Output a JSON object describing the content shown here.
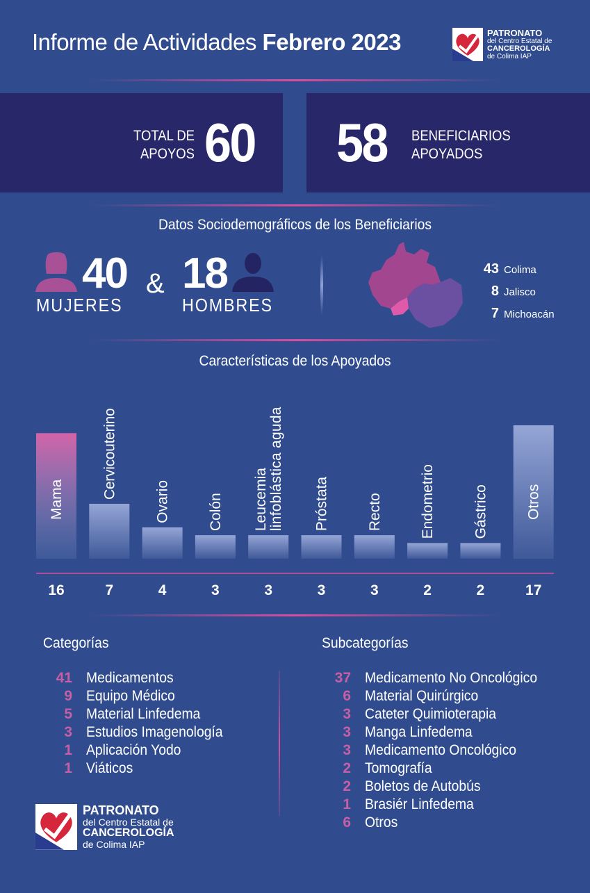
{
  "header": {
    "title_light": "Informe de Actividades",
    "title_bold": "Febrero 2023",
    "logo_line1": "PATRONATO",
    "logo_line2": "del Centro Estatal de",
    "logo_line3": "CANCEROLOGÍA",
    "logo_line4": "de Colima IAP"
  },
  "totals": {
    "apoyos_label_1": "TOTAL DE",
    "apoyos_label_2": "APOYOS",
    "apoyos_value": "60",
    "beneficiarios_value": "58",
    "beneficiarios_label_1": "BENEFICIARIOS",
    "beneficiarios_label_2": "APOYADOS"
  },
  "demographics": {
    "title": "Datos Sociodemográficos de los Beneficiarios",
    "women_value": "40",
    "women_label": "MUJERES",
    "amp": "&",
    "men_value": "18",
    "men_label": "HOMBRES",
    "states": [
      {
        "count": "43",
        "name": "Colima"
      },
      {
        "count": "8",
        "name": "Jalisco"
      },
      {
        "count": "7",
        "name": "Michoacán"
      }
    ]
  },
  "chart_data": {
    "type": "bar",
    "title": "Características de los Apoyados",
    "categories": [
      "Mama",
      "Cervicouterino",
      "Ovario",
      "Colón",
      "Leucemia linfoblástica aguda",
      "Próstata",
      "Recto",
      "Endometrio",
      "Gástrico",
      "Otros"
    ],
    "label_lines": [
      [
        "Mama"
      ],
      [
        "Cervicouterino"
      ],
      [
        "Ovario"
      ],
      [
        "Colón"
      ],
      [
        "Leucemia",
        "linfoblástica aguda"
      ],
      [
        "Próstata"
      ],
      [
        "Recto"
      ],
      [
        "Endometrio"
      ],
      [
        "Gástrico"
      ],
      [
        "Otros"
      ]
    ],
    "values": [
      16,
      7,
      4,
      3,
      3,
      3,
      3,
      2,
      2,
      17
    ],
    "highlight_index": 0,
    "colors": {
      "bar": "#8e9fd0",
      "highlight": "#d463a8"
    }
  },
  "categories": {
    "title": "Categorías",
    "items": [
      {
        "n": "41",
        "label": "Medicamentos"
      },
      {
        "n": "9",
        "label": "Equipo Médico"
      },
      {
        "n": "5",
        "label": "Material Linfedema"
      },
      {
        "n": "3",
        "label": "Estudios Imagenología"
      },
      {
        "n": "1",
        "label": "Aplicación Yodo"
      },
      {
        "n": "1",
        "label": "Viáticos"
      }
    ]
  },
  "subcategories": {
    "title": "Subcategorías",
    "items": [
      {
        "n": "37",
        "label": "Medicamento No Oncológico"
      },
      {
        "n": "6",
        "label": "Material Quirúrgico"
      },
      {
        "n": "3",
        "label": "Cateter Quimioterapia"
      },
      {
        "n": "3",
        "label": "Manga Linfedema"
      },
      {
        "n": "3",
        "label": "Medicamento Oncológico"
      },
      {
        "n": "2",
        "label": "Tomografía"
      },
      {
        "n": "2",
        "label": "Boletos de Autobús"
      },
      {
        "n": "1",
        "label": "Brasiér Linfedema"
      },
      {
        "n": "6",
        "label": "Otros"
      }
    ]
  },
  "colors": {
    "background": "#304c8e",
    "panel": "#28276a",
    "accent_pink": "#d64fa0",
    "number_pink": "#c75fa6"
  }
}
